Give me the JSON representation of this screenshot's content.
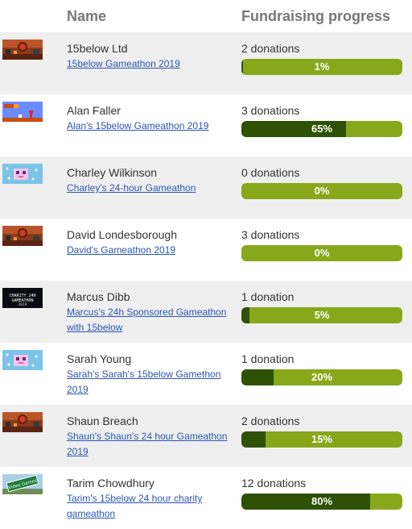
{
  "header": {
    "name": "Name",
    "progress": "Fundraising progress"
  },
  "rows": [
    {
      "name": "15below Ltd",
      "page": "15below Gameathon 2019",
      "donations": "2 donations",
      "percent": "1%",
      "fill": 0.01,
      "thumb_icon": "game-screenshot-icon"
    },
    {
      "name": "Alan Faller",
      "page": "Alan's 15below Gameathon 2019",
      "donations": "3 donations",
      "percent": "65%",
      "fill": 0.65,
      "thumb_icon": "mario-screenshot-icon"
    },
    {
      "name": "Charley Wilkinson",
      "page": "Charley's 24-hour Gameathon",
      "donations": "0 donations",
      "percent": "0%",
      "fill": 0,
      "thumb_icon": "unicorn-screenshot-icon"
    },
    {
      "name": "David Londesborough",
      "page": "David's Gameathon 2019",
      "donations": "3 donations",
      "percent": "0%",
      "fill": 0,
      "thumb_icon": "game-screenshot-icon"
    },
    {
      "name": "Marcus Dibb",
      "page": "Marcus's 24h Sponsored Gameathon with 15below",
      "donations": "1 donation",
      "percent": "5%",
      "fill": 0.05,
      "thumb_icon": "charity-gameathon-logo-icon",
      "thumb_text": "CHARITY 24H GAMEATHON 2019"
    },
    {
      "name": "Sarah Young",
      "page": "Sarah's Sarah's 15below Gamethon 2019",
      "donations": "1 donation",
      "percent": "20%",
      "fill": 0.2,
      "thumb_icon": "unicorn-screenshot-icon"
    },
    {
      "name": "Shaun Breach",
      "page": "Shaun's Shaun's 24 hour Gameathon 2019",
      "donations": "2 donations",
      "percent": "15%",
      "fill": 0.15,
      "thumb_icon": "game-screenshot-icon"
    },
    {
      "name": "Tarim Chowdhury",
      "page": "Tarim's 15below 24 hour charity gameathon",
      "donations": "12 donations",
      "percent": "80%",
      "fill": 0.8,
      "thumb_icon": "video-games-sign-icon",
      "thumb_text": "Video Games"
    }
  ],
  "colors": {
    "bar_bg": "#86a81a",
    "bar_fill": "#2f5104",
    "link": "#2a56b2",
    "row_shade": "#efefef"
  }
}
